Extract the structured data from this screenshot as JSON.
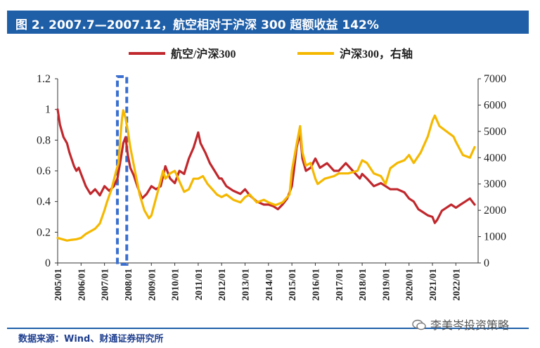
{
  "header": {
    "title": "图 2. 2007.7—2007.12，航空相对于沪深 300 超额收益 142%"
  },
  "footer": {
    "source": "数据来源：Wind、财通证券研究所",
    "watermark": "李美岑投资策略"
  },
  "colors": {
    "title_bg": "#1f5fa8",
    "series_relative": "#c0282d",
    "series_index": "#f5b800",
    "highlight_box": "#3a6fd0"
  },
  "chart_data": {
    "type": "line",
    "title": "图 2. 2007.7—2007.12，航空相对于沪深 300 超额收益 142%",
    "legend_position": "top",
    "x_ticks": [
      "2005/01",
      "2006/01",
      "2007/01",
      "2008/01",
      "2009/01",
      "2010/01",
      "2011/01",
      "2012/01",
      "2013/01",
      "2014/01",
      "2015/01",
      "2016/01",
      "2017/01",
      "2018/01",
      "2019/01",
      "2020/01",
      "2021/01",
      "2022/01"
    ],
    "y_left": {
      "min": 0,
      "max": 1.2,
      "ticks": [
        "0",
        "0.2",
        "0.4",
        "0.6",
        "0.8",
        "1",
        "1.2"
      ]
    },
    "y_right": {
      "min": 0,
      "max": 7000,
      "ticks": [
        "0",
        "1000",
        "2000",
        "3000",
        "4000",
        "5000",
        "6000",
        "7000"
      ]
    },
    "highlight": {
      "start": 2007.55,
      "end": 2007.95,
      "label": "2007.7—2007.12"
    },
    "series": [
      {
        "name": "航空/沪深300",
        "axis": "left",
        "x": [
          2005.0,
          2005.1,
          2005.25,
          2005.4,
          2005.5,
          2005.7,
          2005.8,
          2005.9,
          2006.0,
          2006.2,
          2006.4,
          2006.6,
          2006.8,
          2007.0,
          2007.2,
          2007.4,
          2007.55,
          2007.7,
          2007.8,
          2007.9,
          2008.0,
          2008.1,
          2008.25,
          2008.4,
          2008.6,
          2008.8,
          2009.0,
          2009.2,
          2009.4,
          2009.6,
          2009.8,
          2010.0,
          2010.2,
          2010.4,
          2010.6,
          2010.8,
          2010.9,
          2011.0,
          2011.1,
          2011.3,
          2011.5,
          2011.7,
          2011.9,
          2012.0,
          2012.2,
          2012.5,
          2012.8,
          2013.0,
          2013.2,
          2013.5,
          2013.8,
          2014.0,
          2014.2,
          2014.4,
          2014.6,
          2014.8,
          2015.0,
          2015.1,
          2015.2,
          2015.35,
          2015.45,
          2015.6,
          2015.8,
          2016.0,
          2016.2,
          2016.5,
          2016.8,
          2017.0,
          2017.3,
          2017.6,
          2017.9,
          2018.0,
          2018.2,
          2018.5,
          2018.8,
          2019.0,
          2019.2,
          2019.5,
          2019.8,
          2020.0,
          2020.2,
          2020.4,
          2020.6,
          2020.8,
          2021.0,
          2021.1,
          2021.2,
          2021.4,
          2021.6,
          2021.8,
          2022.0,
          2022.2,
          2022.4,
          2022.6,
          2022.8
        ],
        "values": [
          1.0,
          0.9,
          0.82,
          0.78,
          0.72,
          0.63,
          0.6,
          0.62,
          0.58,
          0.5,
          0.45,
          0.48,
          0.44,
          0.5,
          0.47,
          0.5,
          0.55,
          0.68,
          0.78,
          0.82,
          0.7,
          0.62,
          0.57,
          0.5,
          0.42,
          0.45,
          0.5,
          0.48,
          0.5,
          0.63,
          0.55,
          0.52,
          0.6,
          0.58,
          0.68,
          0.75,
          0.8,
          0.85,
          0.78,
          0.72,
          0.65,
          0.6,
          0.55,
          0.55,
          0.5,
          0.47,
          0.45,
          0.48,
          0.44,
          0.4,
          0.38,
          0.38,
          0.37,
          0.35,
          0.38,
          0.42,
          0.5,
          0.62,
          0.75,
          0.85,
          0.68,
          0.6,
          0.62,
          0.68,
          0.62,
          0.65,
          0.6,
          0.6,
          0.65,
          0.6,
          0.55,
          0.58,
          0.55,
          0.5,
          0.52,
          0.5,
          0.48,
          0.48,
          0.46,
          0.42,
          0.4,
          0.35,
          0.33,
          0.31,
          0.3,
          0.26,
          0.28,
          0.34,
          0.36,
          0.38,
          0.36,
          0.38,
          0.4,
          0.42,
          0.38
        ]
      },
      {
        "name": "沪深300，右轴",
        "axis": "right",
        "x": [
          2005.0,
          2005.2,
          2005.4,
          2005.6,
          2005.8,
          2006.0,
          2006.2,
          2006.4,
          2006.6,
          2006.8,
          2007.0,
          2007.1,
          2007.3,
          2007.5,
          2007.6,
          2007.7,
          2007.75,
          2007.8,
          2007.9,
          2008.0,
          2008.1,
          2008.3,
          2008.5,
          2008.7,
          2008.9,
          2009.0,
          2009.3,
          2009.5,
          2009.6,
          2009.8,
          2010.0,
          2010.2,
          2010.4,
          2010.6,
          2010.8,
          2011.0,
          2011.2,
          2011.4,
          2011.6,
          2011.8,
          2012.0,
          2012.2,
          2012.5,
          2012.8,
          2013.0,
          2013.2,
          2013.5,
          2013.8,
          2014.0,
          2014.3,
          2014.6,
          2014.9,
          2015.0,
          2015.2,
          2015.35,
          2015.45,
          2015.6,
          2015.8,
          2016.0,
          2016.1,
          2016.4,
          2016.8,
          2017.0,
          2017.4,
          2017.8,
          2018.0,
          2018.2,
          2018.5,
          2018.8,
          2019.0,
          2019.2,
          2019.5,
          2019.8,
          2020.0,
          2020.2,
          2020.5,
          2020.8,
          2021.0,
          2021.1,
          2021.3,
          2021.6,
          2021.9,
          2022.0,
          2022.3,
          2022.6,
          2022.8
        ],
        "values": [
          950,
          900,
          850,
          880,
          900,
          950,
          1100,
          1200,
          1300,
          1500,
          2000,
          2300,
          2800,
          3500,
          3800,
          5000,
          5500,
          5800,
          5500,
          5000,
          4400,
          3500,
          2600,
          2000,
          1700,
          1800,
          2800,
          3500,
          3200,
          3400,
          3500,
          3100,
          2700,
          2800,
          3200,
          3200,
          3300,
          3000,
          2800,
          2600,
          2500,
          2600,
          2400,
          2300,
          2500,
          2600,
          2300,
          2400,
          2300,
          2200,
          2300,
          2600,
          3500,
          4500,
          5200,
          4200,
          3700,
          3800,
          3200,
          3000,
          3200,
          3300,
          3400,
          3400,
          3500,
          3900,
          3800,
          3400,
          3300,
          3000,
          3600,
          3800,
          3900,
          4100,
          3800,
          4200,
          4800,
          5400,
          5600,
          5200,
          5000,
          4800,
          4600,
          4100,
          4000,
          4400
        ]
      }
    ]
  }
}
